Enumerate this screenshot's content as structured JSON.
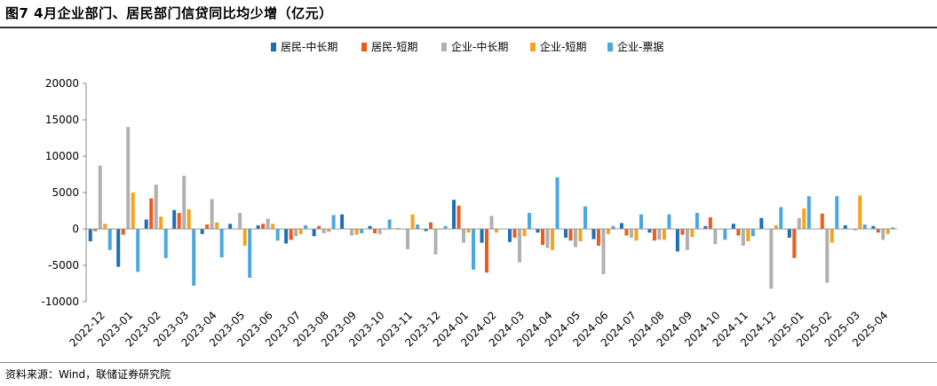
{
  "header": {
    "title": "图7  4月企业部门、居民部门信贷同比均少增（亿元）"
  },
  "footer": {
    "source": "资料来源：Wind，联储证券研究院"
  },
  "chart_data": {
    "type": "bar",
    "title": "图7  4月企业部门、居民部门信贷同比均少增（亿元）",
    "xlabel": "",
    "ylabel": "",
    "ylim": [
      -10000,
      20000
    ],
    "yticks": [
      20000,
      15000,
      10000,
      5000,
      0,
      -5000,
      -10000
    ],
    "legend_position": "top",
    "grid": false,
    "categories": [
      "2022-12",
      "2023-01",
      "2023-02",
      "2023-03",
      "2023-04",
      "2023-05",
      "2023-06",
      "2023-07",
      "2023-08",
      "2023-09",
      "2023-10",
      "2023-11",
      "2023-12",
      "2024-01",
      "2024-02",
      "2024-03",
      "2024-04",
      "2024-05",
      "2024-06",
      "2024-07",
      "2024-08",
      "2024-09",
      "2024-10",
      "2024-11",
      "2024-12",
      "2025-01",
      "2025-02",
      "2025-03",
      "2025-04"
    ],
    "series": [
      {
        "name": "居民-中长期",
        "color": "#1f6fb5",
        "values": [
          -1700,
          -5200,
          1300,
          2600,
          -700,
          700,
          500,
          -2000,
          -1000,
          2000,
          400,
          100,
          -300,
          4000,
          -1900,
          -1800,
          -500,
          -1200,
          -1400,
          800,
          -500,
          -3100,
          400,
          700,
          1500,
          -1200,
          0,
          500,
          400
        ]
      },
      {
        "name": "居民-短期",
        "color": "#f05a1a",
        "values": [
          -300,
          -800,
          4200,
          2200,
          600,
          0,
          700,
          -1500,
          400,
          0,
          -600,
          0,
          900,
          3200,
          -6000,
          -1200,
          -2200,
          -1600,
          -2300,
          -900,
          -1600,
          -800,
          1600,
          -900,
          0,
          -4000,
          2100,
          0,
          -500
        ]
      },
      {
        "name": "企业-中长期",
        "color": "#b0b0b0",
        "values": [
          8700,
          14000,
          6100,
          7300,
          4100,
          2200,
          1400,
          -1000,
          -600,
          -900,
          -700,
          -2800,
          -3500,
          -1900,
          1800,
          -4600,
          -2600,
          -2500,
          -6200,
          -1200,
          -1500,
          -2900,
          -2100,
          -2300,
          -8200,
          1500,
          -7400,
          -200,
          -1500
        ]
      },
      {
        "name": "企业-短期",
        "color": "#f7a21b",
        "values": [
          700,
          5000,
          1700,
          2700,
          900,
          -2300,
          700,
          -700,
          -400,
          -800,
          -100,
          2000,
          -100,
          -500,
          -500,
          -1000,
          -2900,
          -1700,
          -700,
          -1600,
          -1500,
          -1100,
          -100,
          -1700,
          500,
          2800,
          -1900,
          4600,
          -700
        ]
      },
      {
        "name": "企业-票据",
        "color": "#4aa8de",
        "values": [
          -2900,
          -5900,
          -4000,
          -7800,
          -3900,
          -6700,
          -1600,
          500,
          1900,
          -600,
          1300,
          600,
          400,
          -5600,
          0,
          2200,
          7100,
          3100,
          400,
          2000,
          2000,
          2200,
          -1500,
          -1000,
          3000,
          4500,
          4500,
          600,
          200
        ]
      }
    ]
  }
}
